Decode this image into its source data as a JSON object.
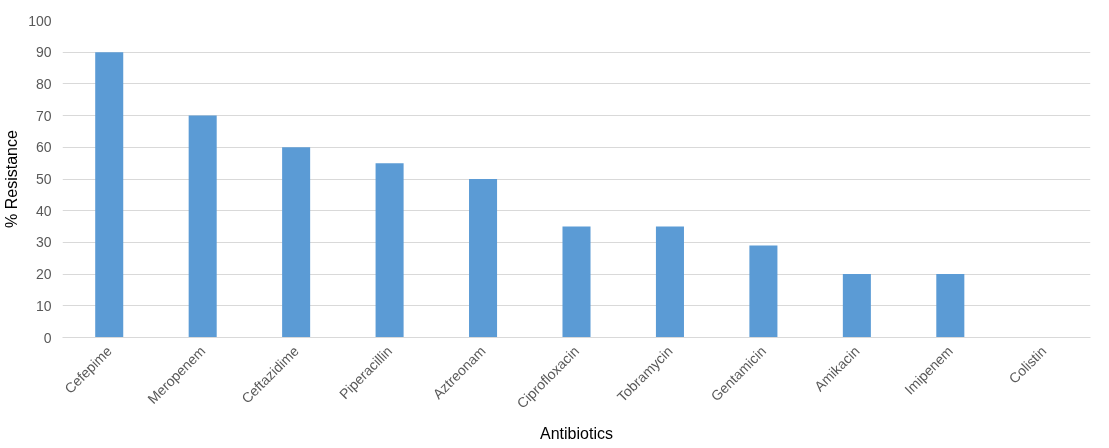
{
  "chart_data": {
    "type": "bar",
    "xlabel": "Antibiotics",
    "ylabel": "% Resistance",
    "categories": [
      "Cefepime",
      "Meropenem",
      "Ceftazidime",
      "Piperacillin",
      "Aztreonam",
      "Ciprofloxacin",
      "Tobramycin",
      "Gentamicin",
      "Amikacin",
      "Imipenem",
      "Colistin"
    ],
    "values": [
      90,
      70,
      60,
      55,
      50,
      35,
      35,
      29,
      20,
      20,
      0
    ],
    "color": "#5b9bd5",
    "ylim": [
      0,
      100
    ],
    "yticks": [
      0,
      10,
      20,
      30,
      40,
      50,
      60,
      70,
      80,
      90,
      100
    ],
    "grid": "y"
  }
}
